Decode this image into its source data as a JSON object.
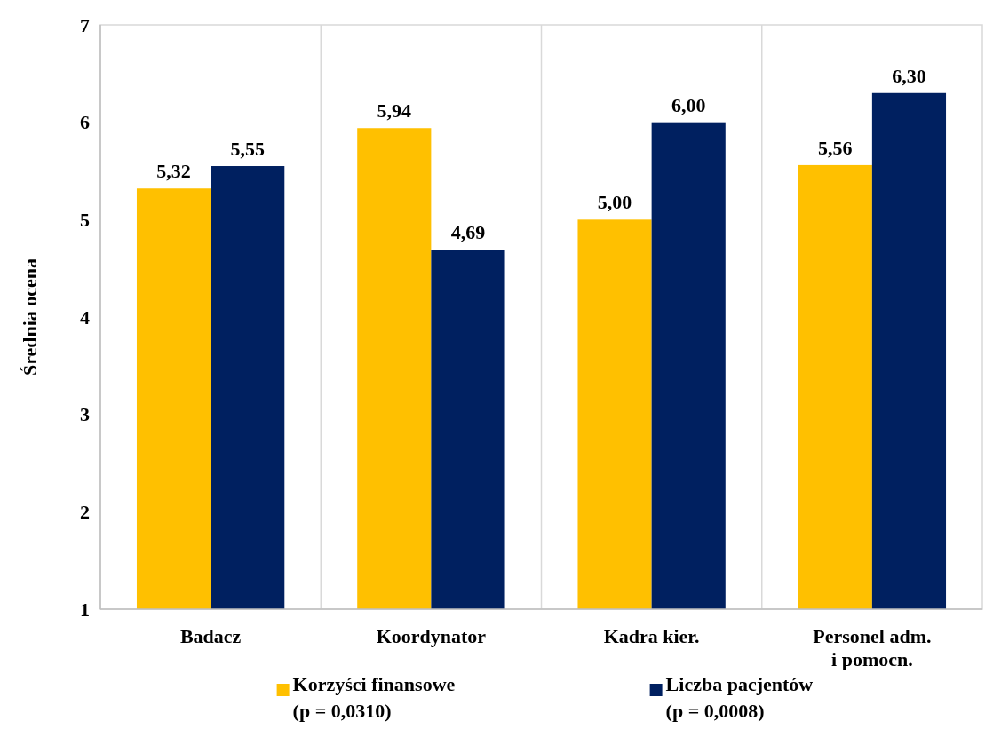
{
  "chart_data": {
    "type": "bar",
    "ylabel": "Średnia ocena",
    "categories": [
      "Badacz",
      "Koordynator",
      "Kadra kier.",
      "Personel adm. i pomocn."
    ],
    "series": [
      {
        "name": "Korzyści finansowe (p = 0,0310)",
        "color": "#ffc000",
        "values": [
          5.32,
          5.94,
          5.0,
          5.56
        ],
        "value_labels": [
          "5,32",
          "5,94",
          "5,00",
          "5,56"
        ]
      },
      {
        "name": "Liczba pacjentów (p = 0,0008)",
        "color": "#002060",
        "values": [
          5.55,
          4.69,
          6.0,
          6.3
        ],
        "value_labels": [
          "5,55",
          "4,69",
          "6,00",
          "6,30"
        ]
      }
    ],
    "ylim": [
      1,
      7
    ],
    "yticks": [
      1,
      2,
      3,
      4,
      5,
      6,
      7
    ],
    "grid": "x",
    "legend": "bottom"
  }
}
